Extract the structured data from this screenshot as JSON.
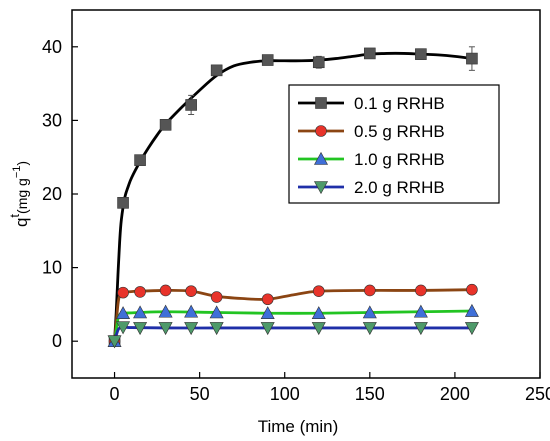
{
  "chart_data": {
    "type": "line",
    "xlabel": "Time (min)",
    "ylabel_main": "q",
    "ylabel_sup": "t",
    "ylabel_unit": "(mg g",
    "ylabel_exp": "−1",
    "ylabel_close": ")",
    "xlim": [
      -25,
      250
    ],
    "ylim": [
      -5,
      45
    ],
    "xticks": [
      0,
      50,
      100,
      150,
      200,
      250
    ],
    "yticks": [
      0,
      10,
      20,
      30,
      40
    ],
    "legend_position": "right",
    "series": [
      {
        "name": "0.1 g RRHB",
        "color": "#000000",
        "marker_color": "#555555",
        "marker": "square",
        "x": [
          0,
          5,
          15,
          30,
          45,
          60,
          90,
          120,
          150,
          180,
          210
        ],
        "y": [
          0,
          18.8,
          24.6,
          29.4,
          32.1,
          36.8,
          38.2,
          37.9,
          39.1,
          39.0,
          38.4
        ],
        "err": [
          0.3,
          0.7,
          0.4,
          0.7,
          1.3,
          0.3,
          0.6,
          0.8,
          0.4,
          0.7,
          1.6
        ],
        "fit_x": [
          0,
          1,
          2,
          3,
          4,
          6,
          8,
          10,
          15,
          20,
          25,
          30,
          40,
          50,
          60,
          70,
          80,
          90,
          100,
          110,
          120,
          130,
          140,
          150,
          160,
          170,
          180,
          190,
          200,
          210
        ],
        "fit_y": [
          0,
          4,
          9,
          13.5,
          16.5,
          19.5,
          21.0,
          22.2,
          24.4,
          26.3,
          28.0,
          29.5,
          31.9,
          34.1,
          36.1,
          37.4,
          37.9,
          38.1,
          38.1,
          38.1,
          38.2,
          38.4,
          38.7,
          39.0,
          39.1,
          39.1,
          39.0,
          38.9,
          38.7,
          38.4
        ]
      },
      {
        "name": "0.5 g RRHB",
        "color": "#8B4513",
        "marker_color": "#e8332a",
        "marker": "circle",
        "x": [
          0,
          5,
          15,
          30,
          45,
          60,
          90,
          120,
          150,
          180,
          210
        ],
        "y": [
          0,
          6.6,
          6.7,
          6.9,
          6.8,
          6.0,
          5.7,
          6.8,
          6.9,
          6.9,
          7.0
        ],
        "err": [
          0.2,
          0.3,
          0.3,
          0.3,
          0.2,
          0.3,
          0.3,
          0.3,
          0.2,
          0.3,
          0.3
        ],
        "fit_x": [
          0,
          1,
          2,
          3,
          5,
          8,
          15,
          30,
          45,
          60,
          75,
          90,
          105,
          120,
          150,
          180,
          210
        ],
        "fit_y": [
          0,
          2.5,
          5.0,
          6.2,
          6.6,
          6.7,
          6.8,
          6.9,
          6.8,
          6.1,
          5.8,
          5.7,
          6.3,
          6.8,
          6.9,
          6.9,
          7.0
        ]
      },
      {
        "name": "1.0 g RRHB",
        "color": "#22c422",
        "marker_color": "#3f6fd8",
        "marker": "triangle-up",
        "x": [
          0,
          5,
          15,
          30,
          45,
          60,
          90,
          120,
          150,
          180,
          210
        ],
        "y": [
          0,
          3.8,
          3.9,
          4.0,
          4.0,
          3.9,
          3.8,
          3.8,
          3.9,
          4.0,
          4.1
        ],
        "err": [
          0.2,
          0.2,
          0.2,
          0.2,
          0.2,
          0.2,
          0.2,
          0.2,
          0.2,
          0.2,
          0.2
        ],
        "fit_x": [
          0,
          1,
          2,
          3,
          5,
          10,
          15,
          30,
          60,
          90,
          120,
          150,
          180,
          210
        ],
        "fit_y": [
          0,
          1.5,
          3.0,
          3.6,
          3.8,
          3.85,
          3.9,
          4.0,
          3.9,
          3.8,
          3.8,
          3.9,
          4.0,
          4.1
        ]
      },
      {
        "name": "2.0 g RRHB",
        "color": "#1f2fa8",
        "marker_color": "#4e9a6a",
        "marker": "triangle-down",
        "x": [
          0,
          5,
          15,
          30,
          45,
          60,
          90,
          120,
          150,
          180,
          210
        ],
        "y": [
          0,
          1.9,
          1.8,
          1.8,
          1.8,
          1.8,
          1.8,
          1.8,
          1.8,
          1.8,
          1.8
        ],
        "err": [
          0.1,
          0.1,
          0.1,
          0.1,
          0.1,
          0.1,
          0.1,
          0.1,
          0.1,
          0.1,
          0.1
        ],
        "fit_x": [
          0,
          1,
          2,
          3,
          5,
          10,
          30,
          60,
          90,
          120,
          150,
          180,
          210
        ],
        "fit_y": [
          0,
          0.8,
          1.5,
          1.8,
          1.9,
          1.85,
          1.8,
          1.8,
          1.8,
          1.8,
          1.8,
          1.8,
          1.8
        ]
      }
    ]
  }
}
